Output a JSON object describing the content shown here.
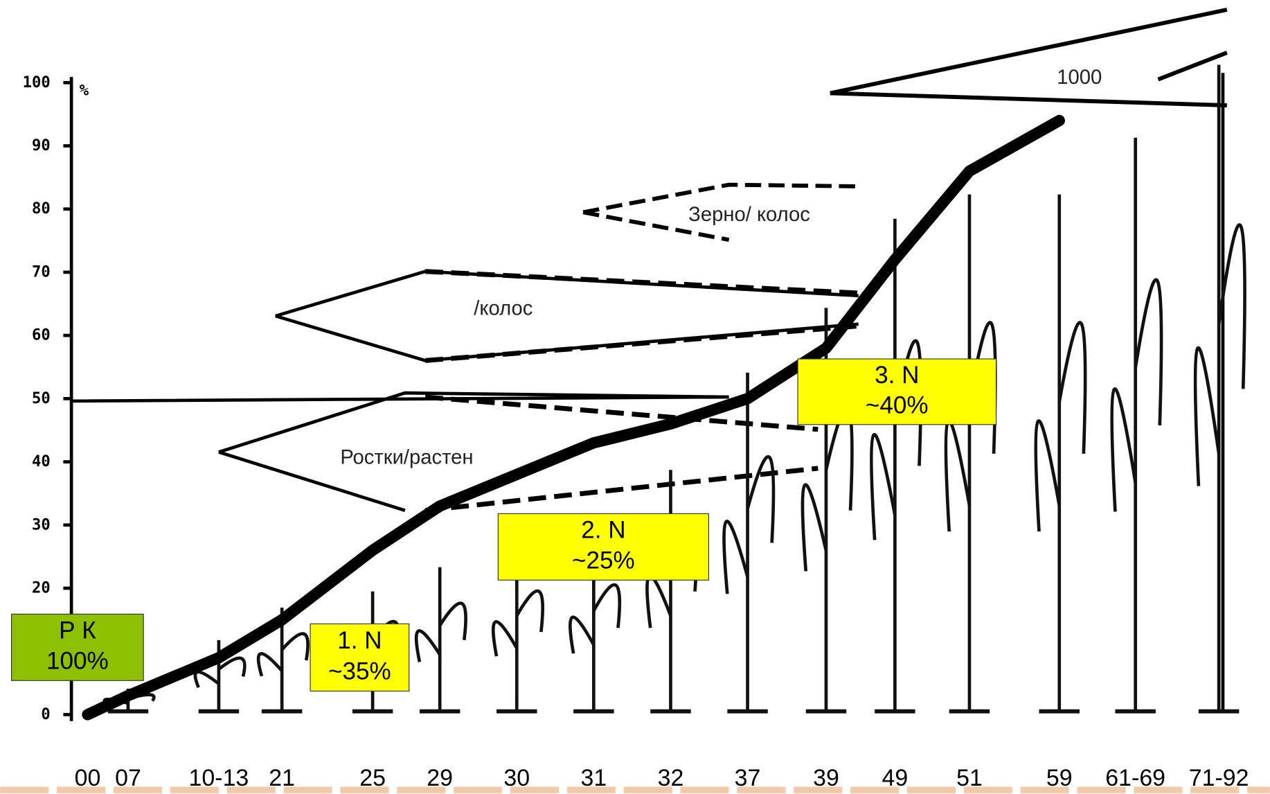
{
  "chart_data": {
    "type": "line",
    "y_label": "%",
    "categories": [
      "00",
      "07",
      "10-13",
      "21",
      "25",
      "29",
      "30",
      "31",
      "32",
      "37",
      "39",
      "49",
      "51",
      "59",
      "61-69",
      "71-92"
    ],
    "series": [
      {
        "color": "#000000",
        "values": [
          0,
          3,
          9,
          15,
          26,
          33,
          38,
          43,
          46,
          50,
          58,
          72,
          86,
          94,
          null,
          null
        ]
      }
    ],
    "ylim": [
      0,
      100
    ],
    "yticks": [
      0,
      20,
      30,
      40,
      50,
      60,
      70,
      80,
      90,
      100
    ],
    "annotations": {
      "wedges": [
        "Ростки/растен",
        "/колос",
        "Зерно/ колос",
        "1000"
      ],
      "boxes": [
        {
          "lines": [
            "Р К",
            "100%"
          ],
          "color": "#8cc000"
        },
        {
          "lines": [
            "1.  N",
            "~35%"
          ],
          "color": "#ffff00"
        },
        {
          "lines": [
            "2. N",
            "~25%"
          ],
          "color": "#ffff00"
        },
        {
          "lines": [
            "3. N",
            "~40%"
          ],
          "color": "#ffff00"
        }
      ]
    }
  }
}
